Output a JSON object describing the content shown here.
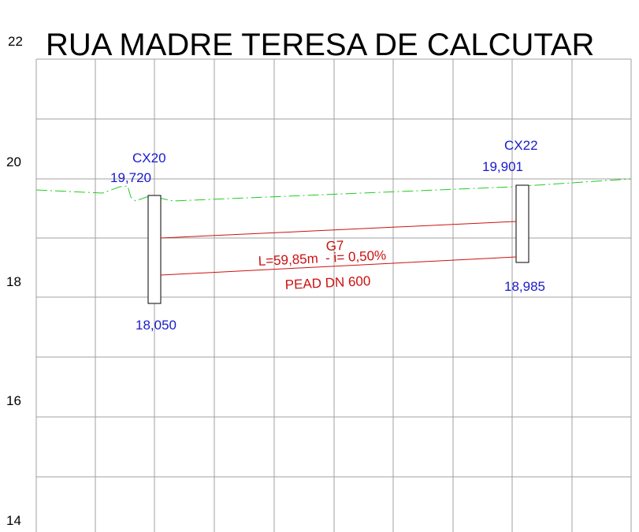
{
  "title": "RUA MADRE TERESA DE CALCUTAR",
  "elevation_labels": [
    "22",
    "20",
    "18",
    "16",
    "14"
  ],
  "manholes": [
    {
      "name": "CX20",
      "terrain": "19,720",
      "invert": "18,050"
    },
    {
      "name": "CX22",
      "terrain": "19,901",
      "invert": "18,985"
    }
  ],
  "pipe": {
    "id": "G7",
    "length_slope": "L=59,85m  - i= 0,50%",
    "material": "PEAD DN 600"
  }
}
